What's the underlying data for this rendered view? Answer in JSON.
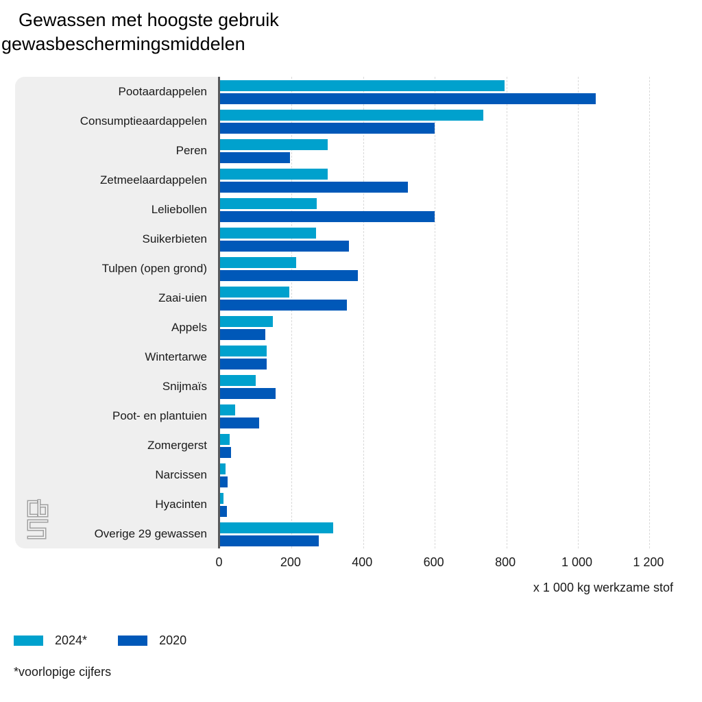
{
  "title": {
    "line1": "Gewassen met hoogste gebruik",
    "line2": "gewasbeschermingsmiddelen"
  },
  "colors": {
    "series_2024": "#00a1cd",
    "series_2020": "#0058b8",
    "panel_bg": "#efefef",
    "axis_line": "#58585a",
    "gridline": "#d9d9d9",
    "text": "#1a1a1a"
  },
  "chart_data": {
    "type": "bar",
    "orientation": "horizontal",
    "title": "Gewassen met hoogste gebruik gewasbeschermingsmiddelen",
    "xlabel": "x 1 000 kg werkzame stof",
    "ylabel": "",
    "xlim": [
      0,
      1346
    ],
    "grid": true,
    "legend_position": "bottom",
    "categories": [
      "Pootaardappelen",
      "Consumptieaardappelen",
      "Peren",
      "Zetmeelaardappelen",
      "Leliebollen",
      "Suikerbieten",
      "Tulpen (open grond)",
      "Zaai-uien",
      "Appels",
      "Wintertarwe",
      "Snijmaïs",
      "Poot- en plantuien",
      "Zomergerst",
      "Narcissen",
      "Hyacinten",
      "Overige 29 gewassen"
    ],
    "series": [
      {
        "name": "2024*",
        "color_key": "series_2024",
        "values": [
          795,
          735,
          300,
          300,
          270,
          268,
          213,
          193,
          147,
          130,
          100,
          42,
          26,
          16,
          10,
          316
        ]
      },
      {
        "name": "2020",
        "color_key": "series_2020",
        "values": [
          1050,
          600,
          195,
          525,
          600,
          360,
          385,
          354,
          126,
          130,
          156,
          110,
          31,
          22,
          20,
          276
        ]
      }
    ],
    "x_ticks": [
      {
        "value": 0,
        "label": "0"
      },
      {
        "value": 200,
        "label": "200"
      },
      {
        "value": 400,
        "label": "400"
      },
      {
        "value": 600,
        "label": "600"
      },
      {
        "value": 800,
        "label": "800"
      },
      {
        "value": 1000,
        "label": "1 000"
      },
      {
        "value": 1200,
        "label": "1 200"
      }
    ]
  },
  "footnote": "*voorlopige cijfers",
  "logo": "cbs-logo"
}
